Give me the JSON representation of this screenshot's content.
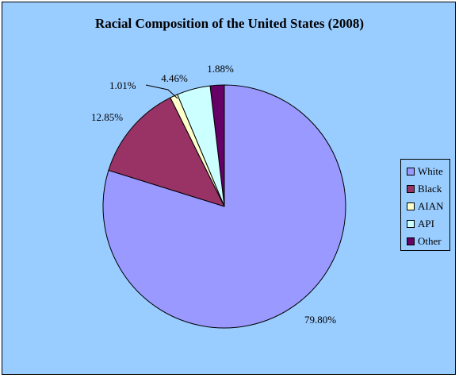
{
  "chart_data": {
    "type": "pie",
    "title": "Racial Composition of the United States (2008)",
    "categories": [
      "White",
      "Black",
      "AIAN",
      "API",
      "Other"
    ],
    "values": [
      79.8,
      12.85,
      1.01,
      4.46,
      1.88
    ],
    "value_labels": [
      "79.80%",
      "12.85%",
      "1.01%",
      "4.46%",
      "1.88%"
    ],
    "colors": [
      "#9999FF",
      "#993366",
      "#FFFFCC",
      "#CCFFFF",
      "#660066"
    ],
    "legend_position": "right"
  }
}
